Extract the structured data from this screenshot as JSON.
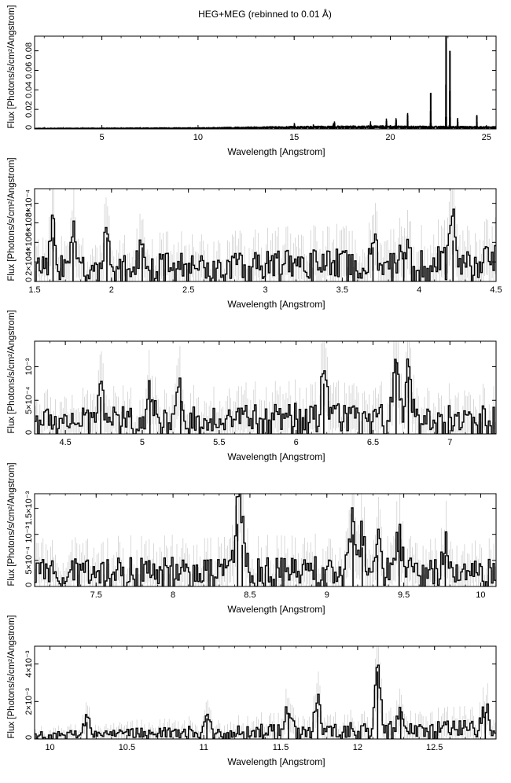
{
  "figure_title": "HEG+MEG (rebinned to 0.01 Å)",
  "chart_data": [
    {
      "type": "line",
      "style": "histogram-with-errorbars",
      "xlabel": "Wavelength [Angstrom]",
      "ylabel": "Flux [Photons/s/cm²/Angstrom]",
      "xlim": [
        1.5,
        25.5
      ],
      "ylim": [
        0,
        0.095
      ],
      "xticks": [
        5,
        10,
        15,
        20,
        25
      ],
      "xtick_labels": [
        "5",
        "10",
        "15",
        "20",
        "25"
      ],
      "yticks": [
        0,
        0.02,
        0.04,
        0.06,
        0.08
      ],
      "ytick_labels": [
        "0",
        "0.02",
        "0.04",
        "0.06",
        "0.08"
      ],
      "lines": [
        {
          "x": 15.01,
          "y": 0.004
        },
        {
          "x": 16.0,
          "y": 0.002
        },
        {
          "x": 17.05,
          "y": 0.004
        },
        {
          "x": 17.1,
          "y": 0.005
        },
        {
          "x": 18.97,
          "y": 0.005
        },
        {
          "x": 19.8,
          "y": 0.008
        },
        {
          "x": 20.3,
          "y": 0.009
        },
        {
          "x": 20.9,
          "y": 0.014
        },
        {
          "x": 22.1,
          "y": 0.037
        },
        {
          "x": 22.9,
          "y": 0.095
        },
        {
          "x": 23.1,
          "y": 0.08
        },
        {
          "x": 23.5,
          "y": 0.009
        },
        {
          "x": 24.5,
          "y": 0.013
        }
      ],
      "continuum": [
        {
          "x": 1.5,
          "y": 0.0005
        },
        {
          "x": 10,
          "y": 0.0008
        },
        {
          "x": 14,
          "y": 0.0015
        },
        {
          "x": 19,
          "y": 0.002
        },
        {
          "x": 25.5,
          "y": 0.0015
        }
      ]
    },
    {
      "type": "line",
      "style": "histogram-with-errorbars",
      "xlabel": "Wavelength [Angstrom]",
      "ylabel": "Flux [Photons/s/cm²/Angstrom]",
      "xlim": [
        1.5,
        4.5
      ],
      "ylim": [
        0,
        0.00095
      ],
      "xticks": [
        1.5,
        2,
        2.5,
        3,
        3.5,
        4,
        4.5
      ],
      "xtick_labels": [
        "1.5",
        "2",
        "2.5",
        "3",
        "3.5",
        "4",
        "4.5"
      ],
      "yticks": [
        0,
        0.0002,
        0.0004,
        0.0006,
        0.0008
      ],
      "ytick_labels": [
        "0",
        "2×10⁻⁴",
        "4×10⁻⁴",
        "6×10⁻⁴",
        "8×10⁻⁴"
      ],
      "lines": [
        {
          "x": 1.62,
          "y": 0.00045
        },
        {
          "x": 1.75,
          "y": 0.0004
        },
        {
          "x": 1.97,
          "y": 0.00045
        },
        {
          "x": 2.2,
          "y": 0.00035
        },
        {
          "x": 3.7,
          "y": 0.00035
        },
        {
          "x": 3.9,
          "y": 0.00024
        },
        {
          "x": 4.22,
          "y": 0.00042
        }
      ],
      "continuum": [
        {
          "x": 1.5,
          "y": 0.00012
        },
        {
          "x": 3.0,
          "y": 0.00015
        },
        {
          "x": 4.5,
          "y": 0.00018
        }
      ]
    },
    {
      "type": "line",
      "style": "histogram-with-errorbars",
      "xlabel": "Wavelength [Angstrom]",
      "ylabel": "Flux [Photons/s/cm²/Angstrom]",
      "xlim": [
        4.3,
        7.3
      ],
      "ylim": [
        0,
        0.00138
      ],
      "xticks": [
        4.5,
        5,
        5.5,
        6,
        6.5,
        7
      ],
      "xtick_labels": [
        "4.5",
        "5",
        "5.5",
        "6",
        "6.5",
        "7"
      ],
      "yticks": [
        0,
        0.0005,
        0.001
      ],
      "ytick_labels": [
        "0",
        "5×10⁻⁴",
        "10⁻³"
      ],
      "lines": [
        {
          "x": 4.73,
          "y": 0.00055
        },
        {
          "x": 5.05,
          "y": 0.0005
        },
        {
          "x": 5.25,
          "y": 0.0005
        },
        {
          "x": 6.18,
          "y": 0.00075
        },
        {
          "x": 6.65,
          "y": 0.0011
        },
        {
          "x": 6.73,
          "y": 0.00085
        }
      ],
      "continuum": [
        {
          "x": 4.3,
          "y": 0.00018
        },
        {
          "x": 5.8,
          "y": 0.00022
        },
        {
          "x": 7.3,
          "y": 0.0002
        }
      ]
    },
    {
      "type": "line",
      "style": "histogram-with-errorbars",
      "xlabel": "Wavelength [Angstrom]",
      "ylabel": "Flux [Photons/s/cm²/Angstrom]",
      "xlim": [
        7.1,
        10.1
      ],
      "ylim": [
        0,
        0.00178
      ],
      "xticks": [
        7.5,
        8,
        8.5,
        9,
        9.5,
        10
      ],
      "xtick_labels": [
        "7.5",
        "8",
        "8.5",
        "9",
        "9.5",
        "10"
      ],
      "yticks": [
        0,
        0.0005,
        0.001,
        0.0015
      ],
      "ytick_labels": [
        "0",
        "5×10⁻⁴",
        "10⁻³",
        "1.5×10⁻³"
      ],
      "lines": [
        {
          "x": 8.42,
          "y": 0.0012
        },
        {
          "x": 8.45,
          "y": 0.0008
        },
        {
          "x": 9.17,
          "y": 0.001
        },
        {
          "x": 9.23,
          "y": 0.00075
        },
        {
          "x": 9.33,
          "y": 0.0006
        },
        {
          "x": 9.47,
          "y": 0.0007
        },
        {
          "x": 9.77,
          "y": 0.0006
        }
      ],
      "continuum": [
        {
          "x": 7.1,
          "y": 0.00025
        },
        {
          "x": 8.5,
          "y": 0.00028
        },
        {
          "x": 10.1,
          "y": 0.00025
        }
      ]
    },
    {
      "type": "line",
      "style": "histogram-with-errorbars",
      "xlabel": "Wavelength [Angstrom]",
      "ylabel": "Flux [Photons/s/cm²/Angstrom]",
      "xlim": [
        9.9,
        12.9
      ],
      "ylim": [
        0,
        0.00495
      ],
      "xticks": [
        10,
        10.5,
        11,
        11.5,
        12,
        12.5
      ],
      "xtick_labels": [
        "10",
        "10.5",
        "11",
        "11.5",
        "12",
        "12.5"
      ],
      "yticks": [
        0,
        0.002,
        0.004
      ],
      "ytick_labels": [
        "0",
        "2×10⁻³",
        "4×10⁻³"
      ],
      "lines": [
        {
          "x": 10.24,
          "y": 0.0009
        },
        {
          "x": 11.02,
          "y": 0.0011
        },
        {
          "x": 11.55,
          "y": 0.0014
        },
        {
          "x": 11.74,
          "y": 0.0016
        },
        {
          "x": 12.13,
          "y": 0.0036
        },
        {
          "x": 12.28,
          "y": 0.0015
        },
        {
          "x": 12.83,
          "y": 0.0012
        }
      ],
      "continuum": [
        {
          "x": 9.9,
          "y": 0.00018
        },
        {
          "x": 11.4,
          "y": 0.0004
        },
        {
          "x": 12.9,
          "y": 0.0005
        }
      ]
    }
  ]
}
